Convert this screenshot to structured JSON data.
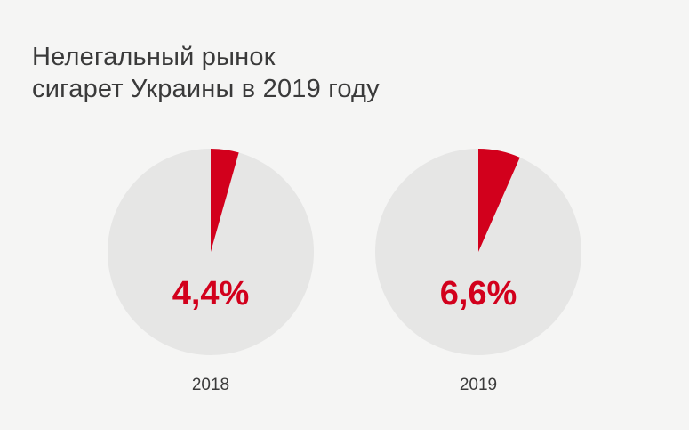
{
  "title": {
    "line1": "Нелегальный рынок",
    "line2": "сигарет Украины в 2019 году"
  },
  "colors": {
    "slice": "#d2001c",
    "rest": "#e6e6e5",
    "label": "#d2001c",
    "year": "#3a3a3a"
  },
  "chart_data": [
    {
      "type": "pie",
      "category": "2018",
      "value_label": "4,4%",
      "values": [
        4.4,
        95.6
      ]
    },
    {
      "type": "pie",
      "category": "2019",
      "value_label": "6,6%",
      "values": [
        6.6,
        93.4
      ]
    }
  ]
}
